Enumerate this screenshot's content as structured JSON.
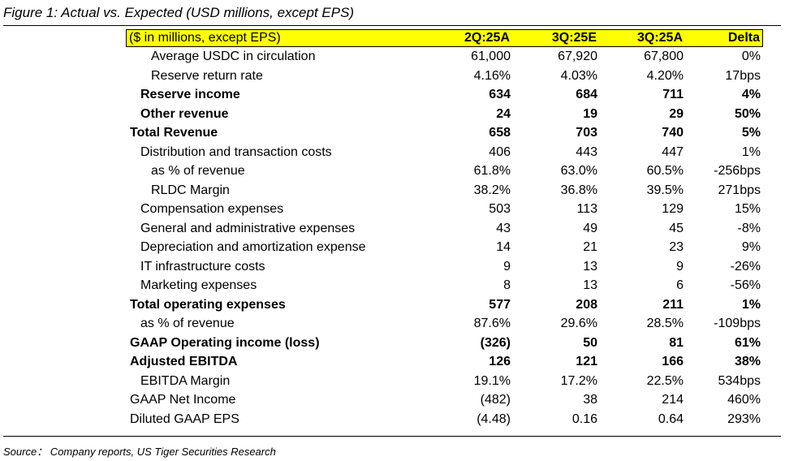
{
  "figure": {
    "title": "Figure 1: Actual vs. Expected (USD millions, except EPS)",
    "source": "Source： Company reports, US Tiger Securities Research"
  },
  "colors": {
    "header_bg": "#ffff00",
    "text": "#000000"
  },
  "table": {
    "header": {
      "label": "($ in millions, except EPS)",
      "col1": "2Q:25A",
      "col2": "3Q:25E",
      "col3": "3Q:25A",
      "col4": "Delta"
    },
    "rows": [
      {
        "label": "Average USDC in circulation",
        "col1": "61,000",
        "col2": "67,920",
        "col3": "67,800",
        "col4": "0%"
      },
      {
        "label": "Reserve return rate",
        "col1": "4.16%",
        "col2": "4.03%",
        "col3": "4.20%",
        "col4": "17bps"
      },
      {
        "label": "Reserve income",
        "col1": "634",
        "col2": "684",
        "col3": "711",
        "col4": "4%"
      },
      {
        "label": "Other revenue",
        "col1": "24",
        "col2": "19",
        "col3": "29",
        "col4": "50%"
      },
      {
        "label": "Total Revenue",
        "col1": "658",
        "col2": "703",
        "col3": "740",
        "col4": "5%"
      },
      {
        "label": "Distribution and transaction costs",
        "col1": "406",
        "col2": "443",
        "col3": "447",
        "col4": "1%"
      },
      {
        "label": "as % of revenue",
        "col1": "61.8%",
        "col2": "63.0%",
        "col3": "60.5%",
        "col4": "-256bps"
      },
      {
        "label": "RLDC Margin",
        "col1": "38.2%",
        "col2": "36.8%",
        "col3": "39.5%",
        "col4": "271bps"
      },
      {
        "label": "Compensation expenses",
        "col1": "503",
        "col2": "113",
        "col3": "129",
        "col4": "15%"
      },
      {
        "label": "General and administrative expenses",
        "col1": "43",
        "col2": "49",
        "col3": "45",
        "col4": "-8%"
      },
      {
        "label": "Depreciation and amortization expense",
        "col1": "14",
        "col2": "21",
        "col3": "23",
        "col4": "9%"
      },
      {
        "label": "IT infrastructure costs",
        "col1": "9",
        "col2": "13",
        "col3": "9",
        "col4": "-26%"
      },
      {
        "label": "Marketing expenses",
        "col1": "8",
        "col2": "13",
        "col3": "6",
        "col4": "-56%"
      },
      {
        "label": "Total operating expenses",
        "col1": "577",
        "col2": "208",
        "col3": "211",
        "col4": "1%"
      },
      {
        "label": "as % of revenue",
        "col1": "87.6%",
        "col2": "29.6%",
        "col3": "28.5%",
        "col4": "-109bps"
      },
      {
        "label": "GAAP Operating income (loss)",
        "col1": "(326)",
        "col2": "50",
        "col3": "81",
        "col4": "61%"
      },
      {
        "label": "Adjusted EBITDA",
        "col1": "126",
        "col2": "121",
        "col3": "166",
        "col4": "38%"
      },
      {
        "label": "EBITDA Margin",
        "col1": "19.1%",
        "col2": "17.2%",
        "col3": "22.5%",
        "col4": "534bps"
      },
      {
        "label": "GAAP Net Income",
        "col1": "(482)",
        "col2": "38",
        "col3": "214",
        "col4": "460%"
      },
      {
        "label": "Diluted GAAP EPS",
        "col1": "(4.48)",
        "col2": "0.16",
        "col3": "0.64",
        "col4": "293%"
      }
    ]
  }
}
